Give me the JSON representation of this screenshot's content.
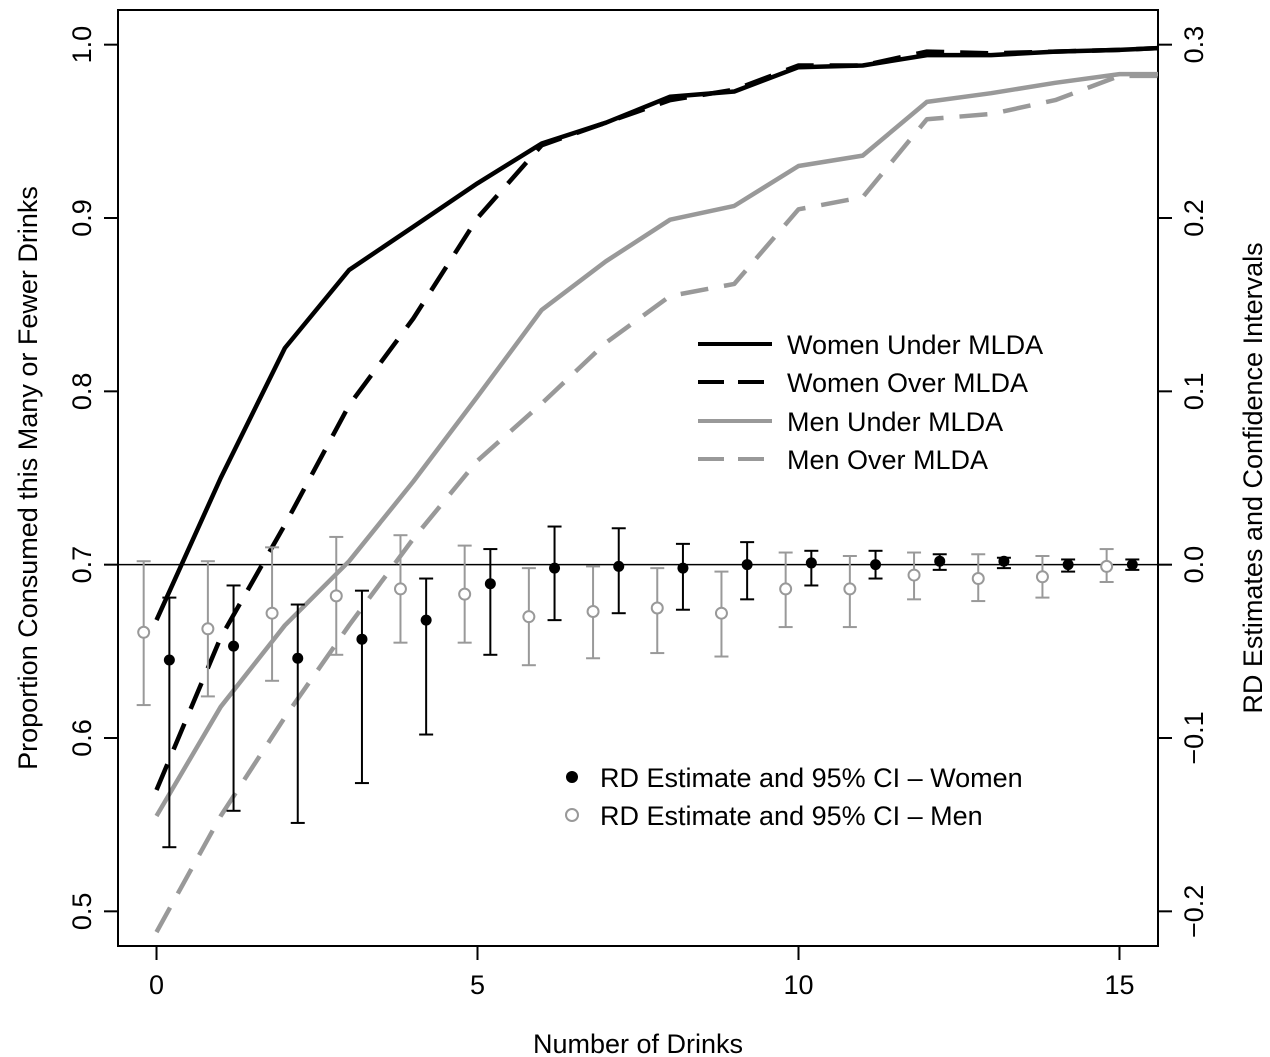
{
  "chart_data": {
    "type": "line",
    "xlabel": "Number of Drinks",
    "ylabel_left": "Proportion Consumed this Many or Fewer Drinks",
    "ylabel_right": "RD Estimates and Confidence Intervals",
    "xlim": [
      -0.6,
      15.6
    ],
    "ylim_left": [
      0.48,
      1.02
    ],
    "ylim_right": [
      -0.22,
      0.32
    ],
    "x_ticks": [
      0,
      5,
      10,
      15
    ],
    "x_tick_labels": [
      "0",
      "5",
      "10",
      "15"
    ],
    "y_left_ticks": [
      0.5,
      0.6,
      0.7,
      0.8,
      0.9,
      1.0
    ],
    "y_left_tick_labels": [
      "0.5",
      "0.6",
      "0.7",
      "0.8",
      "0.9",
      "1.0"
    ],
    "y_right_ticks": [
      -0.2,
      -0.1,
      0.0,
      0.1,
      0.2,
      0.3
    ],
    "y_right_tick_labels": [
      "−0.2",
      "−0.1",
      "0.0",
      "0.1",
      "0.2",
      "0.3"
    ],
    "reference_line_right": 0.0,
    "lines": [
      {
        "name": "Women Under MLDA",
        "color": "#000000",
        "dash": "solid",
        "x": [
          0,
          1,
          2,
          3,
          4,
          5,
          6,
          7,
          8,
          9,
          10,
          11,
          12,
          13,
          14,
          15,
          15.6
        ],
        "y": [
          0.668,
          0.75,
          0.825,
          0.87,
          0.895,
          0.92,
          0.943,
          0.955,
          0.97,
          0.973,
          0.987,
          0.988,
          0.994,
          0.994,
          0.996,
          0.997,
          0.998
        ]
      },
      {
        "name": "Women Over MLDA",
        "color": "#000000",
        "dash": "dashed",
        "x": [
          0,
          1,
          2,
          3,
          4,
          5,
          6,
          7,
          8,
          9,
          10,
          11,
          12,
          13,
          14,
          15,
          15.6
        ],
        "y": [
          0.57,
          0.658,
          0.723,
          0.792,
          0.842,
          0.9,
          0.942,
          0.955,
          0.968,
          0.974,
          0.988,
          0.988,
          0.996,
          0.995,
          0.996,
          0.997,
          0.998
        ]
      },
      {
        "name": "Men Under MLDA",
        "color": "#999999",
        "dash": "solid",
        "x": [
          0,
          1,
          2,
          3,
          4,
          5,
          6,
          7,
          8,
          9,
          10,
          11,
          12,
          13,
          14,
          15,
          15.6
        ],
        "y": [
          0.555,
          0.618,
          0.665,
          0.702,
          0.748,
          0.797,
          0.847,
          0.875,
          0.899,
          0.907,
          0.93,
          0.936,
          0.967,
          0.972,
          0.978,
          0.983,
          0.983
        ]
      },
      {
        "name": "Men Over MLDA",
        "color": "#999999",
        "dash": "dashed",
        "x": [
          0,
          1,
          2,
          3,
          4,
          5,
          6,
          7,
          8,
          9,
          10,
          11,
          12,
          13,
          14,
          15,
          15.6
        ],
        "y": [
          0.488,
          0.555,
          0.612,
          0.665,
          0.715,
          0.76,
          0.793,
          0.828,
          0.855,
          0.862,
          0.905,
          0.912,
          0.957,
          0.96,
          0.968,
          0.982,
          0.982
        ]
      }
    ],
    "rd_series": [
      {
        "name": "RD Estimate and 95% CI – Women",
        "color": "#000000",
        "marker": "filled",
        "x": [
          0.2,
          1.2,
          2.2,
          3.2,
          4.2,
          5.2,
          6.2,
          7.2,
          8.2,
          9.2,
          10.2,
          11.2,
          12.2,
          13.2,
          14.2,
          15.2
        ],
        "est": [
          -0.055,
          -0.047,
          -0.054,
          -0.043,
          -0.032,
          -0.011,
          -0.002,
          -0.001,
          -0.002,
          0.0,
          0.001,
          0.0,
          0.002,
          0.002,
          0.0,
          0.0
        ],
        "lo": [
          -0.163,
          -0.142,
          -0.149,
          -0.126,
          -0.098,
          -0.052,
          -0.032,
          -0.028,
          -0.026,
          -0.02,
          -0.012,
          -0.008,
          -0.003,
          -0.002,
          -0.004,
          -0.003
        ],
        "hi": [
          -0.019,
          -0.012,
          -0.023,
          -0.015,
          -0.008,
          0.009,
          0.022,
          0.021,
          0.012,
          0.013,
          0.008,
          0.008,
          0.006,
          0.004,
          0.003,
          0.003
        ]
      },
      {
        "name": "RD Estimate and 95% CI – Men",
        "color": "#999999",
        "marker": "open",
        "x": [
          -0.2,
          0.8,
          1.8,
          2.8,
          3.8,
          4.8,
          5.8,
          6.8,
          7.8,
          8.8,
          9.8,
          10.8,
          11.8,
          12.8,
          13.8,
          14.8
        ],
        "est": [
          -0.039,
          -0.037,
          -0.028,
          -0.018,
          -0.014,
          -0.017,
          -0.03,
          -0.027,
          -0.025,
          -0.028,
          -0.014,
          -0.014,
          -0.006,
          -0.008,
          -0.007,
          -0.001
        ],
        "lo": [
          -0.081,
          -0.076,
          -0.067,
          -0.052,
          -0.045,
          -0.045,
          -0.058,
          -0.054,
          -0.051,
          -0.053,
          -0.036,
          -0.036,
          -0.02,
          -0.021,
          -0.019,
          -0.01
        ],
        "hi": [
          0.002,
          0.002,
          0.01,
          0.016,
          0.017,
          0.011,
          -0.002,
          -0.001,
          -0.002,
          -0.004,
          0.007,
          0.005,
          0.007,
          0.006,
          0.005,
          0.009
        ]
      }
    ],
    "legend_lines_labels": [
      "Women Under MLDA",
      "Women Over MLDA",
      "Men Under MLDA",
      "Men Over MLDA"
    ],
    "legend_points_labels": [
      "RD Estimate and 95% CI – Women",
      "RD Estimate and 95% CI – Men"
    ],
    "grid": false,
    "legend_lines_placement": "center-right",
    "legend_points_placement": "bottom-right"
  }
}
